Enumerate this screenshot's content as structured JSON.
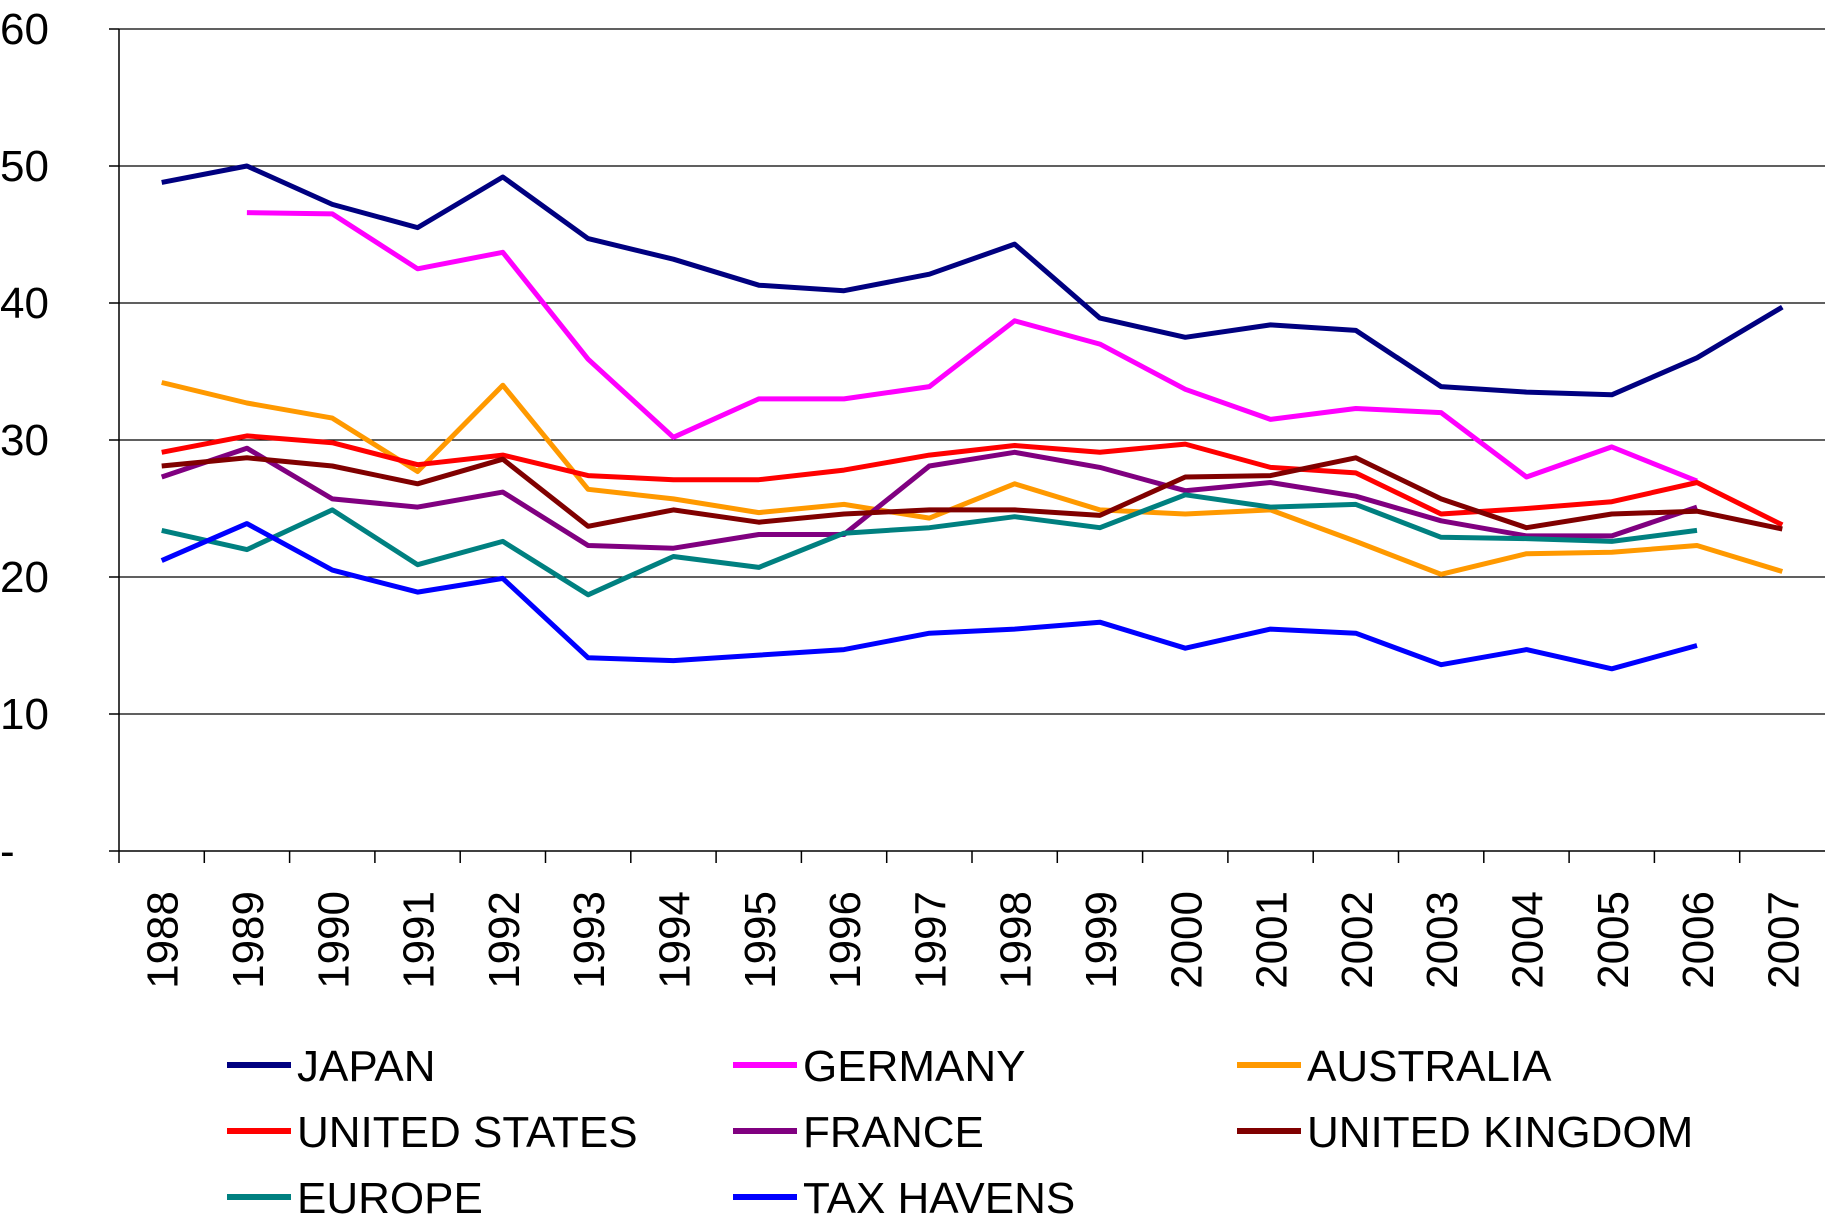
{
  "chart_data": {
    "type": "line",
    "categories": [
      "1988",
      "1989",
      "1990",
      "1991",
      "1992",
      "1993",
      "1994",
      "1995",
      "1996",
      "1997",
      "1998",
      "1999",
      "2000",
      "2001",
      "2002",
      "2003",
      "2004",
      "2005",
      "2006",
      "2007"
    ],
    "ylim": [
      0,
      60
    ],
    "yticks": [
      {
        "value": 0,
        "label": "-"
      },
      10,
      20,
      30,
      40,
      50,
      60
    ],
    "grid": true,
    "legend": "bottom",
    "series": [
      {
        "name": "JAPAN",
        "color": "#000080",
        "values": [
          48.8,
          50.0,
          47.2,
          45.5,
          49.2,
          44.7,
          43.2,
          41.3,
          40.9,
          42.1,
          44.3,
          38.9,
          37.5,
          38.4,
          38.0,
          33.9,
          33.5,
          33.3,
          36.0,
          39.7
        ]
      },
      {
        "name": "GERMANY",
        "color": "#ff00ff",
        "values": [
          null,
          46.6,
          46.5,
          42.5,
          43.7,
          35.9,
          30.2,
          33.0,
          33.0,
          33.9,
          38.7,
          37.0,
          33.7,
          31.5,
          32.3,
          32.0,
          27.3,
          29.5,
          27.0,
          null
        ]
      },
      {
        "name": "AUSTRALIA",
        "color": "#ff9900",
        "values": [
          34.2,
          32.7,
          31.6,
          27.7,
          34.0,
          26.4,
          25.7,
          24.7,
          25.3,
          24.3,
          26.8,
          24.9,
          24.6,
          24.9,
          22.6,
          20.2,
          21.7,
          21.8,
          22.3,
          20.4
        ]
      },
      {
        "name": "UNITED STATES",
        "color": "#ff0000",
        "values": [
          29.1,
          30.3,
          29.8,
          28.2,
          28.9,
          27.4,
          27.1,
          27.1,
          27.8,
          28.9,
          29.6,
          29.1,
          29.7,
          28.0,
          27.6,
          24.6,
          25.0,
          25.5,
          26.9,
          23.8
        ]
      },
      {
        "name": "FRANCE",
        "color": "#800080",
        "values": [
          27.3,
          29.4,
          25.7,
          25.1,
          26.2,
          22.3,
          22.1,
          23.1,
          23.1,
          28.1,
          29.1,
          28.0,
          26.3,
          26.9,
          25.9,
          24.1,
          23.0,
          23.0,
          25.1,
          null
        ]
      },
      {
        "name": "UNITED KINGDOM",
        "color": "#800000",
        "values": [
          28.1,
          28.7,
          28.1,
          26.8,
          28.6,
          23.7,
          24.9,
          24.0,
          24.6,
          24.9,
          24.9,
          24.5,
          27.3,
          27.4,
          28.7,
          25.7,
          23.6,
          24.6,
          24.8,
          23.5
        ]
      },
      {
        "name": "EUROPE",
        "color": "#008080",
        "values": [
          23.4,
          22.0,
          24.9,
          20.9,
          22.6,
          18.7,
          21.5,
          20.7,
          23.2,
          23.6,
          24.4,
          23.6,
          26.0,
          25.1,
          25.3,
          22.9,
          22.8,
          22.6,
          23.4,
          null
        ]
      },
      {
        "name": "TAX HAVENS",
        "color": "#0000ff",
        "values": [
          21.2,
          23.9,
          20.5,
          18.9,
          19.9,
          14.1,
          13.9,
          14.3,
          14.7,
          15.9,
          16.2,
          16.7,
          14.8,
          16.2,
          15.9,
          13.6,
          14.7,
          13.3,
          15.0,
          null
        ]
      }
    ]
  }
}
